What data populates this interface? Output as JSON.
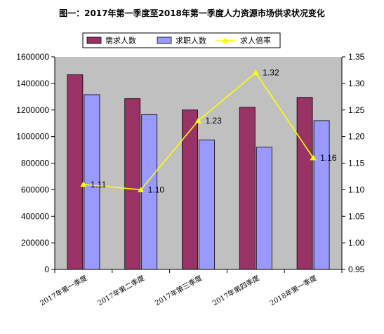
{
  "chart_data": {
    "type": "bar",
    "title": "图一：2017年第一季度至2018年第一季度人力资源市场供求状况变化",
    "categories": [
      "2017年第一季度",
      "2017年第二季度",
      "2017年第三季度",
      "2017年第四季度",
      "2018年第一季度"
    ],
    "series": [
      {
        "name": "需求人数",
        "type": "bar",
        "axis": "left",
        "color": "#993366",
        "values": [
          1465000,
          1285000,
          1200000,
          1220000,
          1295000
        ]
      },
      {
        "name": "求职人数",
        "type": "bar",
        "axis": "left",
        "color": "#9999FF",
        "values": [
          1315000,
          1165000,
          975000,
          920000,
          1120000
        ]
      },
      {
        "name": "求人倍率",
        "type": "line",
        "axis": "right",
        "color": "#FFFF00",
        "values": [
          1.11,
          1.1,
          1.23,
          1.32,
          1.16
        ],
        "data_labels": [
          "1.11",
          "1.10",
          "1.23",
          "1.32",
          "1.16"
        ]
      }
    ],
    "y_left": {
      "min": 0,
      "max": 1600000,
      "ticks": [
        "0",
        "200000",
        "400000",
        "600000",
        "800000",
        "1000000",
        "1200000",
        "1400000",
        "1600000"
      ]
    },
    "y_right": {
      "min": 0.95,
      "max": 1.35,
      "ticks": [
        "0.95",
        "1.00",
        "1.05",
        "1.10",
        "1.15",
        "1.20",
        "1.25",
        "1.30",
        "1.35"
      ]
    },
    "grid": false,
    "plot_background": "#C0C0C0",
    "legend_position": "top"
  }
}
